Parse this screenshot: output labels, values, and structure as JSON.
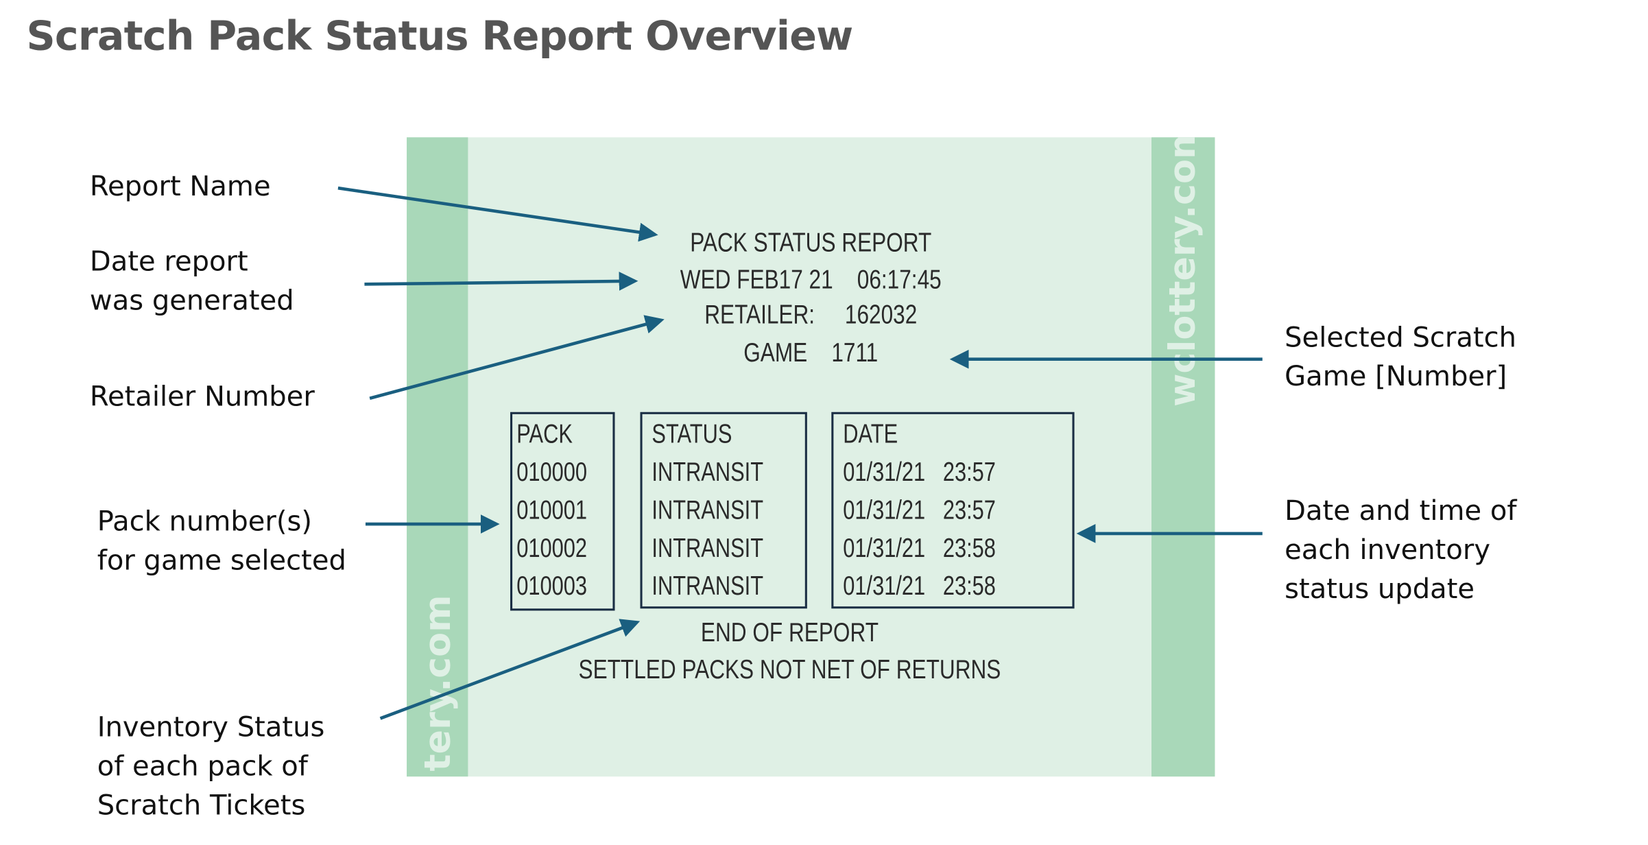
{
  "title": "Scratch Pack Status Report Overview",
  "receipt": {
    "watermark_right": "wclottery.com",
    "watermark_left": "tery.com",
    "report_name": "PACK STATUS REPORT",
    "date_line": "WED FEB17 21    06:17:45",
    "retailer_line": "RETAILER:     162032",
    "game_line": "GAME    1711",
    "columns": {
      "pack": {
        "header": "PACK",
        "values": [
          "010000",
          "010001",
          "010002",
          "010003"
        ]
      },
      "status": {
        "header": "STATUS",
        "values": [
          "INTRANSIT",
          "INTRANSIT",
          "INTRANSIT",
          "INTRANSIT"
        ]
      },
      "date": {
        "header": "DATE",
        "values": [
          "01/31/21   23:57",
          "01/31/21   23:57",
          "01/31/21   23:58",
          "01/31/21   23:58"
        ]
      }
    },
    "footer1": "END OF REPORT",
    "footer2": "SETTLED PACKS NOT NET OF RETURNS"
  },
  "callouts": {
    "report_name": [
      "Report Name"
    ],
    "date_generated": [
      "Date report",
      "was generated"
    ],
    "retailer_number": [
      "Retailer Number"
    ],
    "pack_numbers": [
      "Pack number(s)",
      "for game selected"
    ],
    "inventory_status": [
      "Inventory Status",
      "of each pack of",
      "Scratch Tickets"
    ],
    "selected_game": [
      "Selected Scratch",
      "Game [Number]"
    ],
    "date_time": [
      "Date and time of",
      "each inventory",
      "status update"
    ]
  },
  "colors": {
    "arrow": "#1a5f80",
    "receipt_bg": "#dff0e5",
    "strip": "#a9d8b9",
    "box_border": "#1a2e44"
  }
}
